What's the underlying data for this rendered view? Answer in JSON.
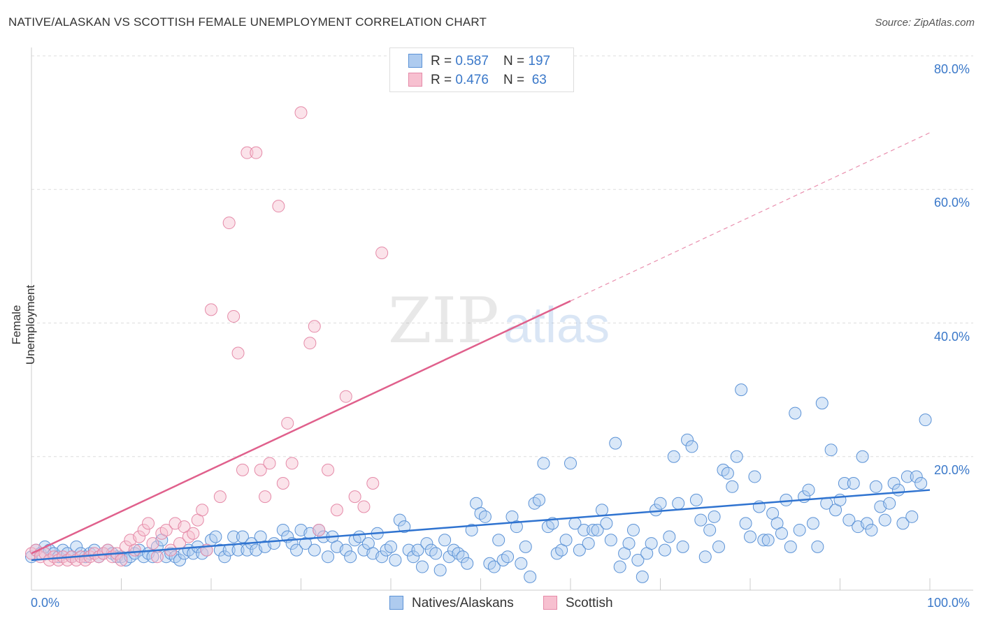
{
  "title": "NATIVE/ALASKAN VS SCOTTISH FEMALE UNEMPLOYMENT CORRELATION CHART",
  "source": "Source: ZipAtlas.com",
  "watermark": {
    "zip": "ZIP",
    "atlas": "atlas"
  },
  "legend": {
    "rows": [
      {
        "r_label": "R = ",
        "r_value": "0.587",
        "n_label": "N = ",
        "n_value": "197",
        "color": "#aecbef",
        "border": "#5b92d6"
      },
      {
        "r_label": "R = ",
        "r_value": "0.476",
        "n_label": "N = ",
        "n_value": " 63",
        "color": "#f7c0d0",
        "border": "#e58aa8"
      }
    ]
  },
  "bottom_legend": [
    {
      "label": "Natives/Alaskans",
      "color": "#aecbef",
      "border": "#5b92d6"
    },
    {
      "label": "Scottish",
      "color": "#f7c0d0",
      "border": "#e58aa8"
    }
  ],
  "chart_data": {
    "type": "scatter",
    "ylabel": "Female Unemployment",
    "xlabel": "",
    "xlim": [
      0,
      100
    ],
    "ylim": [
      0,
      85
    ],
    "x_tick_labels": [
      "0.0%",
      "100.0%"
    ],
    "y_tick_labels": [
      "20.0%",
      "40.0%",
      "60.0%",
      "80.0%"
    ],
    "y_ticks": [
      20,
      40,
      60,
      80
    ],
    "grid": true,
    "colors": {
      "blue": "#5b92d6",
      "blue_fill": "#aecbef",
      "pink": "#e58aa8",
      "pink_fill": "#f7c0d0",
      "blue_line": "#2f73d0",
      "pink_line": "#e0608c"
    },
    "series": [
      {
        "name": "Natives/Alaskans",
        "trend": {
          "x0": 0,
          "y0": 4.5,
          "x1": 100,
          "y1": 15.0,
          "solid_to": 100
        },
        "points": [
          [
            0,
            5
          ],
          [
            0.5,
            6
          ],
          [
            1,
            5.5
          ],
          [
            1.5,
            6.5
          ],
          [
            2,
            6
          ],
          [
            2.5,
            5.5
          ],
          [
            3,
            5
          ],
          [
            3.5,
            6
          ],
          [
            4,
            5.5
          ],
          [
            4.5,
            5
          ],
          [
            5,
            6.5
          ],
          [
            5.5,
            5.5
          ],
          [
            6,
            5
          ],
          [
            6.5,
            5.5
          ],
          [
            7,
            6
          ],
          [
            7.5,
            5
          ],
          [
            8,
            5.5
          ],
          [
            8.5,
            6
          ],
          [
            9,
            5.5
          ],
          [
            9.5,
            5
          ],
          [
            10,
            5
          ],
          [
            10.5,
            4.5
          ],
          [
            11,
            5
          ],
          [
            11.5,
            5.5
          ],
          [
            12,
            6
          ],
          [
            12.5,
            5
          ],
          [
            13,
            5.5
          ],
          [
            13.5,
            5
          ],
          [
            14,
            6.5
          ],
          [
            14.5,
            7.5
          ],
          [
            15,
            5
          ],
          [
            15.5,
            5.5
          ],
          [
            16,
            5
          ],
          [
            16.5,
            4.5
          ],
          [
            17,
            5.5
          ],
          [
            17.5,
            6
          ],
          [
            18,
            5.5
          ],
          [
            18.5,
            6.5
          ],
          [
            19,
            5.5
          ],
          [
            19.5,
            6
          ],
          [
            20,
            7.5
          ],
          [
            20.5,
            8
          ],
          [
            21,
            6
          ],
          [
            21.5,
            5
          ],
          [
            22,
            6
          ],
          [
            22.5,
            8
          ],
          [
            23,
            6
          ],
          [
            23.5,
            8
          ],
          [
            24,
            6
          ],
          [
            24.5,
            7
          ],
          [
            25,
            6
          ],
          [
            25.5,
            8
          ],
          [
            26,
            6.5
          ],
          [
            27,
            7
          ],
          [
            28,
            9
          ],
          [
            28.5,
            8
          ],
          [
            29,
            7
          ],
          [
            29.5,
            6
          ],
          [
            30,
            9
          ],
          [
            30.5,
            7
          ],
          [
            31,
            8.5
          ],
          [
            31.5,
            6
          ],
          [
            32,
            9
          ],
          [
            32.5,
            8
          ],
          [
            33,
            5
          ],
          [
            33.5,
            8
          ],
          [
            34,
            6.5
          ],
          [
            35,
            6
          ],
          [
            35.5,
            5
          ],
          [
            36,
            7.5
          ],
          [
            36.5,
            8
          ],
          [
            37,
            6
          ],
          [
            37.5,
            7
          ],
          [
            38,
            5.5
          ],
          [
            38.5,
            8.5
          ],
          [
            39,
            5
          ],
          [
            39.5,
            6
          ],
          [
            40,
            6.5
          ],
          [
            40.5,
            4.5
          ],
          [
            41,
            10.5
          ],
          [
            41.5,
            9.5
          ],
          [
            42,
            6
          ],
          [
            42.5,
            5
          ],
          [
            43,
            6
          ],
          [
            43.5,
            3.5
          ],
          [
            44,
            7
          ],
          [
            44.5,
            6
          ],
          [
            45,
            5.5
          ],
          [
            45.5,
            3
          ],
          [
            46,
            7.5
          ],
          [
            46.5,
            5
          ],
          [
            47,
            6
          ],
          [
            47.5,
            5.5
          ],
          [
            48,
            5
          ],
          [
            48.5,
            4
          ],
          [
            49,
            9
          ],
          [
            49.5,
            13
          ],
          [
            50,
            11.5
          ],
          [
            50.5,
            11
          ],
          [
            51,
            4
          ],
          [
            51.5,
            3.5
          ],
          [
            52,
            7.5
          ],
          [
            52.5,
            4.5
          ],
          [
            53,
            5
          ],
          [
            53.5,
            11
          ],
          [
            54,
            9.5
          ],
          [
            54.5,
            4
          ],
          [
            55,
            6.5
          ],
          [
            55.5,
            2
          ],
          [
            56,
            13
          ],
          [
            56.5,
            13.5
          ],
          [
            57,
            19
          ],
          [
            57.5,
            9.5
          ],
          [
            58,
            10
          ],
          [
            58.5,
            5.5
          ],
          [
            59,
            6
          ],
          [
            59.5,
            7.5
          ],
          [
            60,
            19
          ],
          [
            60.5,
            10
          ],
          [
            61,
            6
          ],
          [
            61.5,
            9
          ],
          [
            62,
            7
          ],
          [
            62.5,
            9
          ],
          [
            63,
            9
          ],
          [
            63.5,
            12
          ],
          [
            64,
            10
          ],
          [
            64.5,
            7.5
          ],
          [
            65,
            22
          ],
          [
            65.5,
            3.5
          ],
          [
            66,
            5.5
          ],
          [
            66.5,
            7
          ],
          [
            67,
            9
          ],
          [
            67.5,
            4.5
          ],
          [
            68,
            2
          ],
          [
            68.5,
            5.5
          ],
          [
            69,
            7
          ],
          [
            69.5,
            12
          ],
          [
            70,
            13
          ],
          [
            70.5,
            6
          ],
          [
            71,
            8
          ],
          [
            71.5,
            20
          ],
          [
            72,
            13
          ],
          [
            72.5,
            6.5
          ],
          [
            73,
            22.5
          ],
          [
            73.5,
            21.5
          ],
          [
            74,
            13.5
          ],
          [
            74.5,
            10.5
          ],
          [
            75,
            5
          ],
          [
            75.5,
            9
          ],
          [
            76,
            11
          ],
          [
            76.5,
            6.5
          ],
          [
            77,
            18
          ],
          [
            77.5,
            17.5
          ],
          [
            78,
            15.5
          ],
          [
            78.5,
            20
          ],
          [
            79,
            30
          ],
          [
            79.5,
            10
          ],
          [
            80,
            8
          ],
          [
            80.5,
            17
          ],
          [
            81,
            12.5
          ],
          [
            81.5,
            7.5
          ],
          [
            82,
            7.5
          ],
          [
            82.5,
            11.5
          ],
          [
            83,
            10
          ],
          [
            83.5,
            8.5
          ],
          [
            84,
            13.5
          ],
          [
            84.5,
            6.5
          ],
          [
            85,
            26.5
          ],
          [
            85.5,
            9
          ],
          [
            86,
            14
          ],
          [
            86.5,
            15
          ],
          [
            87,
            10
          ],
          [
            87.5,
            6.5
          ],
          [
            88,
            28
          ],
          [
            88.5,
            13
          ],
          [
            89,
            21
          ],
          [
            89.5,
            12
          ],
          [
            90,
            13.5
          ],
          [
            90.5,
            16
          ],
          [
            91,
            10.5
          ],
          [
            91.5,
            16
          ],
          [
            92,
            9.5
          ],
          [
            92.5,
            20
          ],
          [
            93,
            10
          ],
          [
            93.5,
            9
          ],
          [
            94,
            15.5
          ],
          [
            94.5,
            12.5
          ],
          [
            95,
            10.5
          ],
          [
            95.5,
            13
          ],
          [
            96,
            16
          ],
          [
            96.5,
            15
          ],
          [
            97,
            10
          ],
          [
            97.5,
            17
          ],
          [
            98,
            11
          ],
          [
            98.5,
            17
          ],
          [
            99,
            16
          ],
          [
            99.5,
            25.5
          ]
        ]
      },
      {
        "name": "Scottish",
        "trend": {
          "x0": 0,
          "y0": 5.5,
          "x1": 100,
          "y1": 68.5,
          "solid_to": 60
        },
        "points": [
          [
            0,
            5.5
          ],
          [
            0.5,
            6
          ],
          [
            1,
            5
          ],
          [
            1.5,
            5.5
          ],
          [
            2,
            4.5
          ],
          [
            2.5,
            5
          ],
          [
            3,
            4.5
          ],
          [
            3.5,
            5
          ],
          [
            4,
            4.5
          ],
          [
            4.5,
            5
          ],
          [
            5,
            4.5
          ],
          [
            5.5,
            5
          ],
          [
            6,
            4.5
          ],
          [
            6.5,
            5
          ],
          [
            7,
            5.5
          ],
          [
            7.5,
            5
          ],
          [
            8,
            5.5
          ],
          [
            8.5,
            6
          ],
          [
            9,
            5
          ],
          [
            9.5,
            5.5
          ],
          [
            10,
            4.5
          ],
          [
            10.5,
            6.5
          ],
          [
            11,
            7.5
          ],
          [
            11.5,
            6
          ],
          [
            12,
            8
          ],
          [
            12.5,
            9
          ],
          [
            13,
            10
          ],
          [
            13.5,
            7
          ],
          [
            14,
            5
          ],
          [
            14.5,
            8.5
          ],
          [
            15,
            9
          ],
          [
            15.5,
            6
          ],
          [
            16,
            10
          ],
          [
            16.5,
            7
          ],
          [
            17,
            9.5
          ],
          [
            17.5,
            8
          ],
          [
            18,
            8.5
          ],
          [
            18.5,
            10.5
          ],
          [
            19,
            12
          ],
          [
            19.5,
            6
          ],
          [
            20,
            42
          ],
          [
            21,
            14
          ],
          [
            22,
            55
          ],
          [
            22.5,
            41
          ],
          [
            23,
            35.5
          ],
          [
            23.5,
            18
          ],
          [
            24,
            65.5
          ],
          [
            25,
            65.5
          ],
          [
            25.5,
            18
          ],
          [
            26,
            14
          ],
          [
            26.5,
            19
          ],
          [
            27.5,
            57.5
          ],
          [
            28,
            16
          ],
          [
            28.5,
            25
          ],
          [
            29,
            19
          ],
          [
            30,
            71.5
          ],
          [
            31,
            37
          ],
          [
            31.5,
            39.5
          ],
          [
            32,
            9
          ],
          [
            33,
            18
          ],
          [
            34,
            12
          ],
          [
            35,
            29
          ],
          [
            36,
            14
          ],
          [
            37,
            12.5
          ],
          [
            38,
            16
          ],
          [
            39,
            50.5
          ]
        ]
      }
    ]
  }
}
